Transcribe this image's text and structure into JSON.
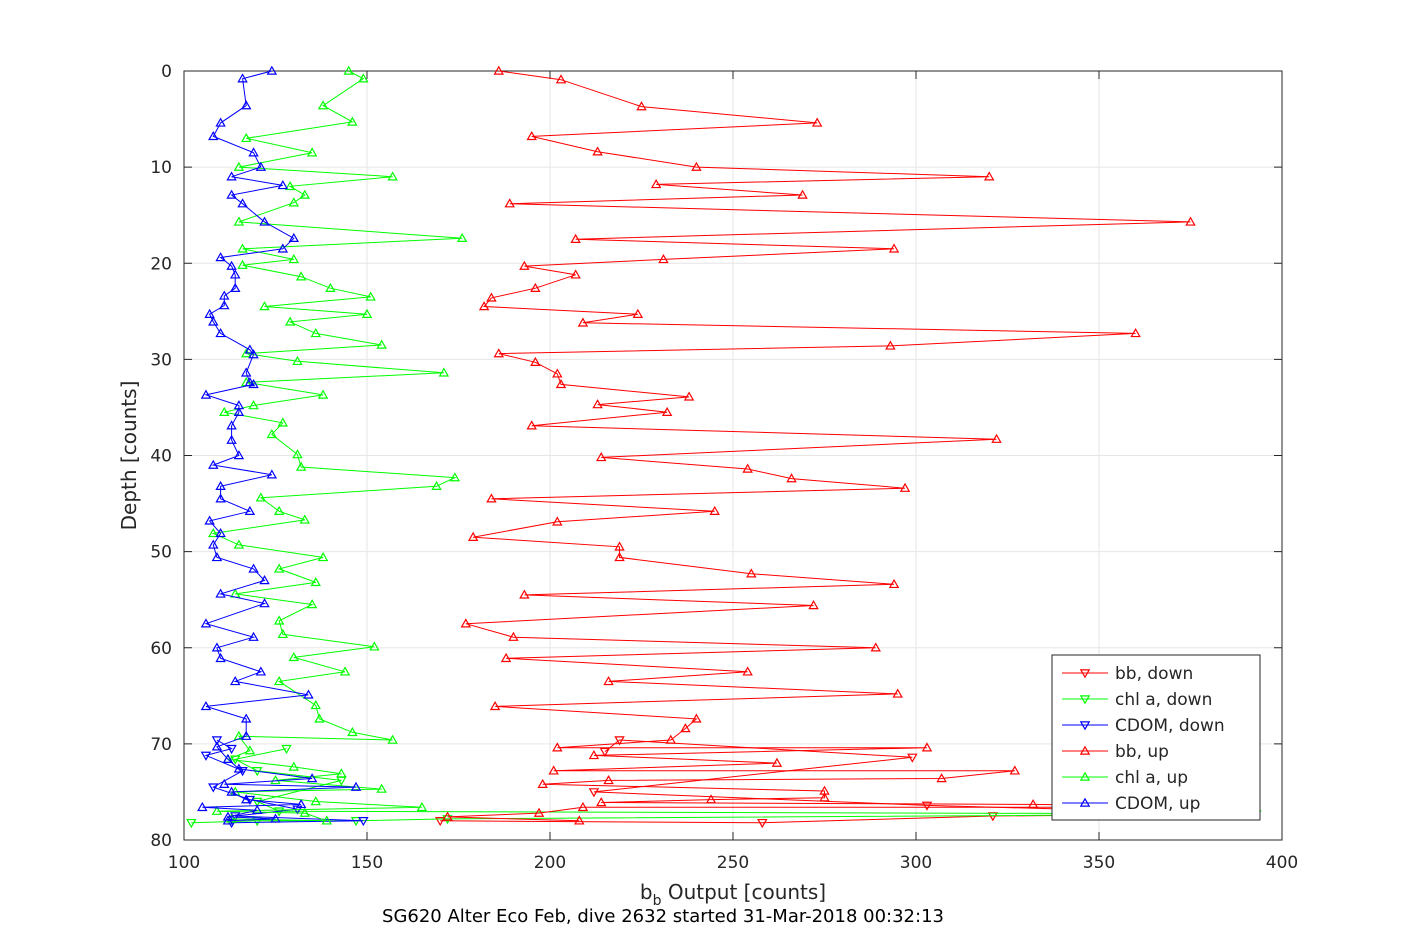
{
  "chart_data": {
    "type": "line",
    "xlabel_main": "b",
    "xlabel_sub": "b",
    "xlabel_rest": " Output [counts]",
    "ylabel": "Depth [counts]",
    "caption": "SG620 Alter Eco Feb, dive 2632 started 31-Mar-2018 00:32:13",
    "xlim": [
      100,
      400
    ],
    "ylim": [
      0,
      80
    ],
    "y_reversed": true,
    "grid": true,
    "legend_position": "bottom-right",
    "xticks": [
      "100",
      "150",
      "200",
      "250",
      "300",
      "350",
      "400"
    ],
    "yticks": [
      "0",
      "10",
      "20",
      "30",
      "40",
      "50",
      "60",
      "70",
      "80"
    ],
    "series": [
      {
        "name": "bb, down",
        "color": "#ff0000",
        "marker": "triangle-down",
        "points": [
          [
            170,
            78.0
          ],
          [
            258,
            78.2
          ],
          [
            321,
            77.5
          ],
          [
            390,
            77.3
          ],
          [
            303,
            76.4
          ],
          [
            212,
            75.0
          ],
          [
            299,
            71.4
          ],
          [
            219,
            69.6
          ],
          [
            215,
            70.8
          ]
        ]
      },
      {
        "name": "chl a, down",
        "color": "#00ff00",
        "marker": "triangle-down",
        "points": [
          [
            102,
            78.2
          ],
          [
            120,
            78.0
          ],
          [
            147,
            78.0
          ],
          [
            172,
            77.8
          ],
          [
            393,
            77.3
          ],
          [
            126,
            77.0
          ],
          [
            120,
            76.0
          ],
          [
            143,
            73.8
          ],
          [
            120,
            72.8
          ],
          [
            114,
            71.6
          ],
          [
            128,
            70.5
          ]
        ]
      },
      {
        "name": "CDOM, down",
        "color": "#0000ff",
        "marker": "triangle-down",
        "points": [
          [
            113,
            78.2
          ],
          [
            149,
            78.0
          ],
          [
            114,
            77.5
          ],
          [
            131,
            76.8
          ],
          [
            118,
            75.8
          ],
          [
            108,
            74.5
          ],
          [
            116,
            72.8
          ],
          [
            106,
            71.2
          ],
          [
            113,
            70.5
          ],
          [
            109,
            69.6
          ]
        ]
      },
      {
        "name": "bb, up",
        "color": "#ff0000",
        "marker": "triangle-up",
        "points": [
          [
            186,
            0.0
          ],
          [
            203,
            0.9
          ],
          [
            225,
            3.7
          ],
          [
            273,
            5.4
          ],
          [
            195,
            6.8
          ],
          [
            213,
            8.4
          ],
          [
            240,
            10.0
          ],
          [
            320,
            11.0
          ],
          [
            229,
            11.8
          ],
          [
            269,
            12.9
          ],
          [
            189,
            13.8
          ],
          [
            375,
            15.7
          ],
          [
            207,
            17.5
          ],
          [
            294,
            18.5
          ],
          [
            231,
            19.6
          ],
          [
            193,
            20.3
          ],
          [
            207,
            21.2
          ],
          [
            196,
            22.6
          ],
          [
            184,
            23.6
          ],
          [
            182,
            24.5
          ],
          [
            224,
            25.3
          ],
          [
            209,
            26.2
          ],
          [
            360,
            27.3
          ],
          [
            293,
            28.6
          ],
          [
            186,
            29.4
          ],
          [
            196,
            30.3
          ],
          [
            202,
            31.5
          ],
          [
            203,
            32.6
          ],
          [
            238,
            33.9
          ],
          [
            213,
            34.7
          ],
          [
            232,
            35.5
          ],
          [
            195,
            36.9
          ],
          [
            322,
            38.3
          ],
          [
            214,
            40.2
          ],
          [
            254,
            41.4
          ],
          [
            266,
            42.4
          ],
          [
            297,
            43.4
          ],
          [
            184,
            44.5
          ],
          [
            245,
            45.8
          ],
          [
            202,
            46.9
          ],
          [
            179,
            48.5
          ],
          [
            219,
            49.5
          ],
          [
            219,
            50.6
          ],
          [
            255,
            52.3
          ],
          [
            294,
            53.4
          ],
          [
            193,
            54.5
          ],
          [
            272,
            55.6
          ],
          [
            177,
            57.5
          ],
          [
            190,
            58.9
          ],
          [
            289,
            60.0
          ],
          [
            188,
            61.1
          ],
          [
            254,
            62.5
          ],
          [
            216,
            63.5
          ],
          [
            295,
            64.8
          ],
          [
            185,
            66.1
          ],
          [
            240,
            67.4
          ],
          [
            237,
            68.4
          ],
          [
            233,
            69.6
          ],
          [
            202,
            70.4
          ],
          [
            303,
            70.4
          ],
          [
            212,
            71.2
          ],
          [
            262,
            72.0
          ],
          [
            201,
            72.8
          ],
          [
            327,
            72.8
          ],
          [
            307,
            73.6
          ],
          [
            216,
            73.8
          ],
          [
            198,
            74.2
          ],
          [
            275,
            74.9
          ],
          [
            275,
            75.6
          ],
          [
            244,
            75.8
          ],
          [
            214,
            76.1
          ],
          [
            332,
            76.3
          ],
          [
            390,
            76.6
          ],
          [
            209,
            76.6
          ],
          [
            197,
            77.2
          ],
          [
            172,
            77.6
          ],
          [
            208,
            78.0
          ]
        ]
      },
      {
        "name": "chl a, up",
        "color": "#00ff00",
        "marker": "triangle-up",
        "points": [
          [
            145,
            0.0
          ],
          [
            149,
            0.8
          ],
          [
            138,
            3.6
          ],
          [
            146,
            5.3
          ],
          [
            117,
            7.0
          ],
          [
            135,
            8.5
          ],
          [
            115,
            10.0
          ],
          [
            157,
            11.0
          ],
          [
            129,
            12.0
          ],
          [
            133,
            12.9
          ],
          [
            130,
            13.7
          ],
          [
            115,
            15.7
          ],
          [
            176,
            17.4
          ],
          [
            116,
            18.5
          ],
          [
            130,
            19.6
          ],
          [
            116,
            20.2
          ],
          [
            132,
            21.4
          ],
          [
            140,
            22.6
          ],
          [
            151,
            23.5
          ],
          [
            122,
            24.5
          ],
          [
            150,
            25.3
          ],
          [
            129,
            26.1
          ],
          [
            136,
            27.3
          ],
          [
            154,
            28.5
          ],
          [
            117,
            29.4
          ],
          [
            131,
            30.2
          ],
          [
            171,
            31.4
          ],
          [
            117,
            32.4
          ],
          [
            138,
            33.7
          ],
          [
            119,
            34.8
          ],
          [
            111,
            35.5
          ],
          [
            127,
            36.6
          ],
          [
            124,
            37.8
          ],
          [
            131,
            39.9
          ],
          [
            132,
            41.2
          ],
          [
            174,
            42.3
          ],
          [
            169,
            43.2
          ],
          [
            121,
            44.4
          ],
          [
            126,
            45.8
          ],
          [
            133,
            46.7
          ],
          [
            108,
            48.1
          ],
          [
            115,
            49.3
          ],
          [
            138,
            50.6
          ],
          [
            126,
            51.8
          ],
          [
            136,
            53.2
          ],
          [
            114,
            54.4
          ],
          [
            135,
            55.5
          ],
          [
            126,
            57.2
          ],
          [
            127,
            58.6
          ],
          [
            152,
            59.9
          ],
          [
            130,
            61.0
          ],
          [
            144,
            62.5
          ],
          [
            126,
            63.5
          ],
          [
            136,
            66.0
          ],
          [
            137,
            67.4
          ],
          [
            146,
            68.8
          ],
          [
            157,
            69.6
          ],
          [
            115,
            69.2
          ],
          [
            118,
            70.7
          ],
          [
            112,
            71.6
          ],
          [
            130,
            72.4
          ],
          [
            143,
            73.1
          ],
          [
            125,
            73.8
          ],
          [
            154,
            74.7
          ],
          [
            114,
            75.0
          ],
          [
            136,
            76.0
          ],
          [
            165,
            76.6
          ],
          [
            109,
            77.0
          ],
          [
            133,
            77.2
          ],
          [
            139,
            78.0
          ],
          [
            113,
            77.8
          ]
        ]
      },
      {
        "name": "CDOM, up",
        "color": "#0000ff",
        "marker": "triangle-up",
        "points": [
          [
            124,
            0.0
          ],
          [
            116,
            0.8
          ],
          [
            117,
            3.6
          ],
          [
            110,
            5.4
          ],
          [
            108,
            6.8
          ],
          [
            119,
            8.5
          ],
          [
            121,
            10.0
          ],
          [
            113,
            11.0
          ],
          [
            127,
            11.9
          ],
          [
            113,
            12.9
          ],
          [
            116,
            13.8
          ],
          [
            122,
            15.7
          ],
          [
            130,
            17.4
          ],
          [
            127,
            18.5
          ],
          [
            110,
            19.4
          ],
          [
            113,
            20.3
          ],
          [
            114,
            21.2
          ],
          [
            114,
            22.6
          ],
          [
            111,
            23.4
          ],
          [
            111,
            24.4
          ],
          [
            107,
            25.3
          ],
          [
            108,
            26.1
          ],
          [
            110,
            27.3
          ],
          [
            118,
            29.0
          ],
          [
            119,
            29.5
          ],
          [
            117,
            31.4
          ],
          [
            118,
            32.4
          ],
          [
            119,
            32.6
          ],
          [
            106,
            33.7
          ],
          [
            115,
            34.8
          ],
          [
            115,
            35.5
          ],
          [
            113,
            36.9
          ],
          [
            113,
            38.4
          ],
          [
            115,
            40.0
          ],
          [
            108,
            41.0
          ],
          [
            124,
            42.0
          ],
          [
            110,
            43.2
          ],
          [
            110,
            44.5
          ],
          [
            118,
            45.8
          ],
          [
            107,
            46.8
          ],
          [
            110,
            48.1
          ],
          [
            108,
            49.3
          ],
          [
            109,
            50.6
          ],
          [
            119,
            51.8
          ],
          [
            122,
            53.0
          ],
          [
            110,
            54.4
          ],
          [
            122,
            55.4
          ],
          [
            106,
            57.5
          ],
          [
            119,
            58.9
          ],
          [
            109,
            60.0
          ],
          [
            110,
            61.1
          ],
          [
            121,
            62.5
          ],
          [
            114,
            63.5
          ],
          [
            134,
            64.9
          ],
          [
            106,
            66.1
          ],
          [
            117,
            67.4
          ],
          [
            117,
            69.2
          ],
          [
            109,
            70.3
          ],
          [
            112,
            71.6
          ],
          [
            115,
            72.6
          ],
          [
            135,
            73.6
          ],
          [
            111,
            74.2
          ],
          [
            147,
            74.5
          ],
          [
            113,
            75.0
          ],
          [
            117,
            75.8
          ],
          [
            132,
            76.3
          ],
          [
            105,
            76.6
          ],
          [
            120,
            76.9
          ],
          [
            112,
            77.6
          ],
          [
            125,
            77.8
          ],
          [
            112,
            78.0
          ]
        ]
      }
    ]
  }
}
